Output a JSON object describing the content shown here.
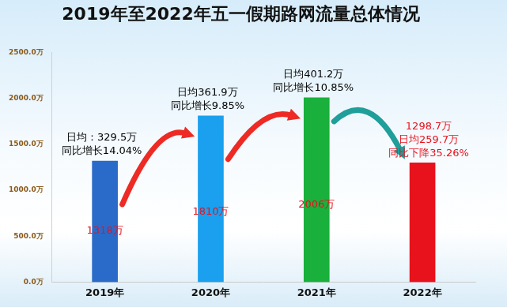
{
  "chart_data": {
    "type": "bar",
    "title": "2019年至2022年五一假期路网流量总体情况",
    "categories": [
      "2019年",
      "2020年",
      "2021年",
      "2022年"
    ],
    "values": [
      1318,
      1810,
      2006,
      1298.7
    ],
    "value_labels": [
      "1318万",
      "1810万",
      "2006万",
      "1298.7万"
    ],
    "data_labels": true,
    "colors": [
      "#2a6bc9",
      "#1aa0ee",
      "#19b03c",
      "#e8121c"
    ],
    "ylim": [
      0,
      2500
    ],
    "yticks": [
      {
        "value": 0,
        "label": "0.0万"
      },
      {
        "value": 500,
        "label": "500.0万"
      },
      {
        "value": 1000,
        "label": "1000.0万"
      },
      {
        "value": 1500,
        "label": "1500.0万"
      },
      {
        "value": 2000,
        "label": "2000.0万"
      },
      {
        "value": 2500,
        "label": "2500.0万"
      }
    ],
    "grid": false,
    "annotations": [
      {
        "category": "2019年",
        "lines": [
          "日均：329.5万",
          "同比增长14.04%"
        ],
        "color": "#000000"
      },
      {
        "category": "2020年",
        "lines": [
          "日均361.9万",
          "同比增长9.85%"
        ],
        "color": "#000000"
      },
      {
        "category": "2021年",
        "lines": [
          "日均401.2万",
          "同比增长10.85%"
        ],
        "color": "#000000"
      },
      {
        "category": "2022年",
        "lines": [
          "日均259.7万",
          "同比下降35.26%"
        ],
        "color": "#e8121c"
      }
    ]
  }
}
